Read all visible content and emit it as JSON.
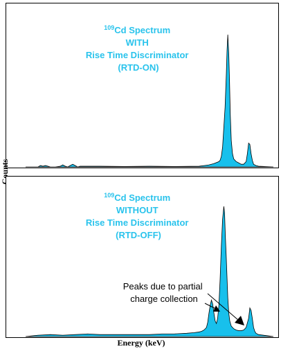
{
  "chart_data": [
    {
      "type": "area",
      "panel": "top",
      "title_lines": [
        {
          "sup": "109",
          "text": "Cd Spectrum"
        },
        {
          "text": "WITH"
        },
        {
          "text": "Rise Time Discriminator"
        },
        {
          "text": "(RTD-ON)"
        }
      ],
      "x_range": [
        0,
        100
      ],
      "y_range": [
        0,
        100
      ],
      "ticks": "none",
      "fill_color": "#18c0ec",
      "series": [
        {
          "x": [
            0,
            5,
            6,
            7,
            8,
            9,
            10,
            12,
            14,
            14.5,
            15,
            15.5,
            16,
            17,
            18,
            19,
            19.5,
            20,
            21,
            22,
            30,
            40,
            50,
            60,
            70,
            72,
            74,
            76,
            78,
            78.5,
            79,
            79.5,
            80,
            80.5,
            81,
            81.3,
            81.6,
            82,
            82.3,
            82.6,
            83,
            83.5,
            84,
            85,
            86,
            87,
            88,
            89,
            89.5,
            90,
            90.5,
            91,
            91.5,
            92,
            93,
            94,
            100
          ],
          "y": [
            0,
            0,
            1,
            0.5,
            1,
            0.5,
            0,
            0,
            0.5,
            1,
            1.5,
            1,
            0.5,
            0,
            1,
            2,
            1.5,
            1,
            0,
            0.5,
            0.5,
            0.3,
            0.5,
            0.3,
            0.5,
            1,
            1.5,
            2.5,
            4,
            5,
            8,
            15,
            30,
            45,
            70,
            88,
            100,
            85,
            65,
            40,
            20,
            10,
            6,
            4,
            3,
            2,
            2,
            4,
            10,
            18,
            17,
            10,
            5,
            2,
            1,
            0.5,
            0
          ]
        }
      ]
    },
    {
      "type": "area",
      "panel": "bottom",
      "title_lines": [
        {
          "sup": "109",
          "text": "Cd Spectrum"
        },
        {
          "text": "WITHOUT"
        },
        {
          "text": "Rise Time Discriminator"
        },
        {
          "text": "(RTD-OFF)"
        }
      ],
      "x_range": [
        0,
        100
      ],
      "y_range": [
        0,
        100
      ],
      "ticks": "none",
      "fill_color": "#18c0ec",
      "annotation": {
        "lines": [
          "Peaks due to partial",
          "charge collection"
        ],
        "arrow_targets_x": [
          75.5,
          86
        ]
      },
      "series": [
        {
          "x": [
            0,
            5,
            10,
            15,
            20,
            25,
            30,
            40,
            50,
            55,
            60,
            65,
            68,
            70,
            71,
            72,
            73,
            73.5,
            74,
            74.5,
            75,
            75.5,
            76,
            76.5,
            77,
            77.5,
            78,
            78.5,
            79,
            79.5,
            80,
            80.3,
            80.6,
            81,
            81.3,
            81.6,
            82,
            82.4,
            83,
            84,
            85,
            86,
            87,
            88,
            89,
            90,
            90.5,
            91,
            91.5,
            92,
            92.5,
            93,
            94,
            100
          ],
          "y": [
            0,
            1,
            1.5,
            1,
            1.5,
            2,
            1.5,
            1.5,
            1.5,
            2,
            2,
            2.5,
            3,
            3.5,
            4,
            5,
            7,
            11,
            18,
            24,
            28,
            25,
            18,
            12,
            10,
            14,
            24,
            44,
            70,
            90,
            100,
            95,
            78,
            60,
            45,
            30,
            18,
            12,
            8,
            6,
            5,
            4.5,
            4.5,
            5,
            7,
            14,
            22,
            20,
            14,
            7,
            4,
            2.5,
            1.5,
            0
          ]
        }
      ]
    }
  ],
  "axes": {
    "ylabel": "Counts",
    "xlabel": "Energy (keV)"
  }
}
